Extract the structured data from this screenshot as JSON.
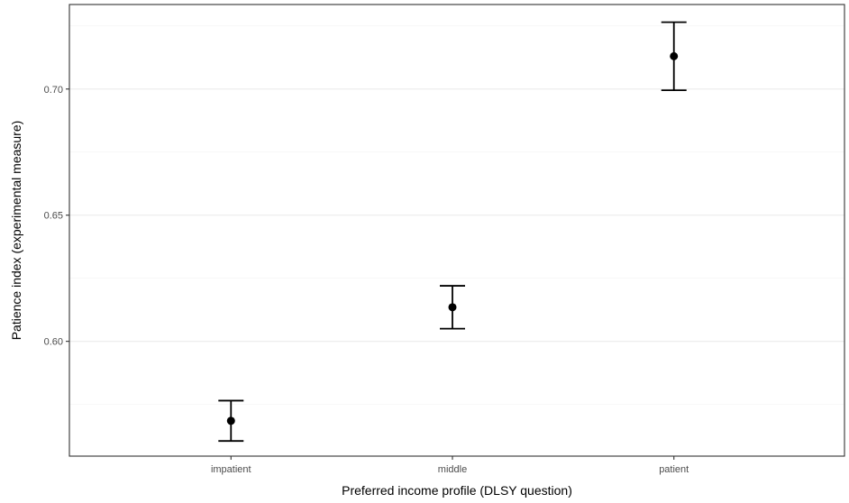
{
  "chart_data": {
    "type": "scatter",
    "categories": [
      "impatient",
      "middle",
      "patient"
    ],
    "values": [
      0.5685,
      0.6135,
      0.713
    ],
    "error_low": [
      0.5605,
      0.605,
      0.6995
    ],
    "error_high": [
      0.5765,
      0.622,
      0.7265
    ],
    "xlabel": "Preferred income profile (DLSY question)",
    "ylabel": "Patience index (experimental measure)",
    "ylim": [
      0.5545,
      0.7335
    ],
    "yticks": [
      "0.60",
      "0.65",
      "0.70"
    ],
    "grid": true
  }
}
